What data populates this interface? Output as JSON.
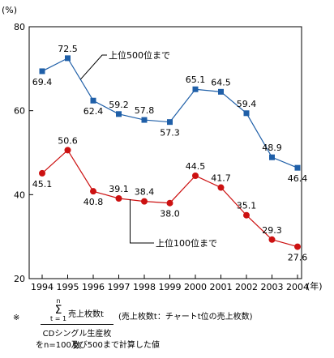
{
  "chart_data": {
    "type": "line",
    "ylabel": "(%)",
    "xlabel": "(年)",
    "ylim": [
      20,
      80
    ],
    "yticks": [
      20,
      40,
      60,
      80
    ],
    "x": [
      "1994",
      "1995",
      "1996",
      "1997",
      "1998",
      "1999",
      "2000",
      "2001",
      "2002",
      "2003",
      "2004"
    ],
    "series": [
      {
        "name": "上位500位まで",
        "color": "#1f5fa8",
        "marker": "square",
        "values": [
          69.4,
          72.5,
          62.4,
          59.2,
          57.8,
          57.3,
          65.1,
          64.5,
          59.4,
          48.9,
          46.4
        ],
        "labels": [
          "69.4",
          "72.5",
          "62.4",
          "59.2",
          "57.8",
          "57.3",
          "65.1",
          "64.5",
          "59.4",
          "48.9",
          "46.4"
        ]
      },
      {
        "name": "上位100位まで",
        "color": "#cc1111",
        "marker": "circle",
        "values": [
          45.1,
          50.6,
          40.8,
          39.1,
          38.4,
          38.0,
          44.5,
          41.7,
          35.1,
          29.3,
          27.6
        ],
        "labels": [
          "45.1",
          "50.6",
          "40.8",
          "39.1",
          "38.4",
          "38.0",
          "44.5",
          "41.7",
          "35.1",
          "29.3",
          "27.6"
        ]
      }
    ],
    "grid": false,
    "legend": "inline labels with leader lines"
  },
  "footnote": {
    "marker": "※",
    "sigma_top": "n",
    "sigma_bottom": "t = 1",
    "numerator": "売上枚数t",
    "denominator": "CDシングル生産枚数",
    "definition": "(売上枚数t：チャートt位の売上枚数)",
    "line2": "をn=100及び500まで計算した値"
  }
}
